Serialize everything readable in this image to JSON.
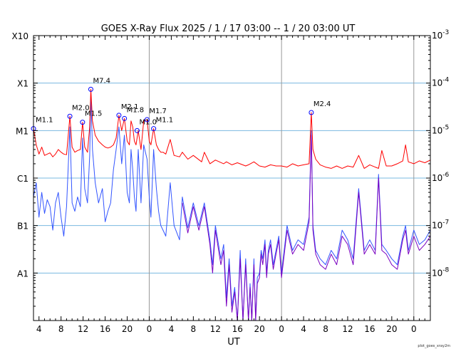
{
  "chart_data": {
    "type": "line",
    "title": "GOES X-Ray Flux   2025 /  1 / 17   03:00 --  1 / 20   03:00   UT",
    "xlabel": "UT",
    "credit": "plot_goes_xray2m",
    "x_start_hour": 3,
    "x_end_hour": 75,
    "yscale": "log",
    "ylim": [
      1e-09,
      0.001
    ],
    "left_ticks": [
      {
        "label": "X10",
        "value": 0.001
      },
      {
        "label": "X1",
        "value": 0.0001
      },
      {
        "label": "M1",
        "value": 1e-05
      },
      {
        "label": "C1",
        "value": 1e-06
      },
      {
        "label": "B1",
        "value": 1e-07
      },
      {
        "label": "A1",
        "value": 1e-08
      }
    ],
    "right_ticks": [
      {
        "mantissa": "10",
        "exp": "-3",
        "value": 0.001
      },
      {
        "mantissa": "10",
        "exp": "-4",
        "value": 0.0001
      },
      {
        "mantissa": "10",
        "exp": "-5",
        "value": 1e-05
      },
      {
        "mantissa": "10",
        "exp": "-6",
        "value": 1e-06
      },
      {
        "mantissa": "10",
        "exp": "-7",
        "value": 1e-07
      },
      {
        "mantissa": "10",
        "exp": "-8",
        "value": 1e-08
      }
    ],
    "x_ticks": [
      {
        "label": "4",
        "hour": 4
      },
      {
        "label": "8",
        "hour": 8
      },
      {
        "label": "12",
        "hour": 12
      },
      {
        "label": "16",
        "hour": 16
      },
      {
        "label": "20",
        "hour": 20
      },
      {
        "label": "0",
        "hour": 24
      },
      {
        "label": "4",
        "hour": 28
      },
      {
        "label": "8",
        "hour": 32
      },
      {
        "label": "12",
        "hour": 36
      },
      {
        "label": "16",
        "hour": 40
      },
      {
        "label": "20",
        "hour": 44
      },
      {
        "label": "0",
        "hour": 48
      },
      {
        "label": "4",
        "hour": 52
      },
      {
        "label": "8",
        "hour": 56
      },
      {
        "label": "12",
        "hour": 60
      },
      {
        "label": "16",
        "hour": 64
      },
      {
        "label": "20",
        "hour": 68
      },
      {
        "label": "0",
        "hour": 72
      }
    ],
    "day_boundaries_hours": [
      24,
      48,
      72
    ],
    "grid_levels": [
      0.0001,
      1e-05,
      1e-06,
      1e-07,
      1e-08
    ],
    "colors": {
      "long": "#ff0000",
      "short": "#3355ff",
      "short_alt": "#7a00c0",
      "grid": "#7ab8e0",
      "day_line": "#999999",
      "marker": "#0000ff"
    },
    "series": [
      {
        "key": "long",
        "x": [
          3.0,
          3.5,
          4.0,
          4.5,
          5.0,
          6.0,
          6.5,
          7.0,
          7.5,
          8.0,
          8.5,
          9.0,
          9.6,
          10.0,
          10.5,
          11.0,
          11.5,
          11.9,
          12.3,
          12.8,
          13.2,
          13.4,
          13.7,
          14.2,
          14.8,
          15.5,
          16.0,
          16.5,
          17.0,
          17.5,
          18.0,
          18.5,
          19.0,
          19.5,
          20.0,
          20.4,
          20.7,
          21.0,
          21.3,
          21.6,
          22.0,
          22.5,
          23.0,
          23.6,
          24.0,
          24.3,
          24.8,
          25.3,
          25.7,
          26.1,
          26.5,
          27.0,
          27.8,
          28.5,
          29.5,
          30.0,
          31.0,
          32.0,
          33.5,
          34.0,
          35.0,
          36.0,
          37.5,
          38.0,
          39.0,
          40.0,
          41.5,
          42.0,
          43.0,
          44.0,
          45.0,
          46.0,
          47.0,
          48.0,
          49.0,
          50.0,
          51.0,
          52.0,
          53.0,
          53.4,
          53.7,
          54.2,
          55.0,
          56.0,
          57.0,
          58.0,
          59.0,
          60.0,
          61.0,
          62.0,
          63.0,
          64.0,
          65.0,
          65.6,
          66.2,
          67.0,
          68.0,
          69.0,
          70.0,
          70.5,
          71.0,
          72.0,
          73.0,
          74.0,
          75.0
        ],
        "y": [
          1.1e-05,
          5e-06,
          3.2e-06,
          4.5e-06,
          3e-06,
          3.4e-06,
          2.8e-06,
          3.2e-06,
          4e-06,
          3.5e-06,
          3.2e-06,
          3.1e-06,
          2e-05,
          4.5e-06,
          3.5e-06,
          3.8e-06,
          4e-06,
          1.5e-05,
          4.5e-06,
          3.5e-06,
          1.2e-05,
          7.4e-05,
          1.6e-05,
          8e-06,
          6e-06,
          5e-06,
          4.5e-06,
          4.3e-06,
          4.5e-06,
          5e-06,
          7e-06,
          2.1e-05,
          1e-05,
          1.8e-05,
          6e-06,
          5e-06,
          1.6e-05,
          1.2e-05,
          6e-06,
          5e-06,
          1e-05,
          4e-06,
          1.6e-05,
          1.7e-05,
          6e-06,
          5e-06,
          1.1e-05,
          5e-06,
          4e-06,
          3.5e-06,
          3.5e-06,
          3.2e-06,
          6.5e-06,
          3e-06,
          2.8e-06,
          3.5e-06,
          2.5e-06,
          3e-06,
          2.2e-06,
          3.5e-06,
          2e-06,
          2.4e-06,
          2e-06,
          2.2e-06,
          1.9e-06,
          2.1e-06,
          1.8e-06,
          1.9e-06,
          2.2e-06,
          1.8e-06,
          1.7e-06,
          1.9e-06,
          1.8e-06,
          1.8e-06,
          1.7e-06,
          2e-06,
          1.8e-06,
          1.9e-06,
          2e-06,
          2.4e-05,
          4e-06,
          2.5e-06,
          1.9e-06,
          1.7e-06,
          1.6e-06,
          1.8e-06,
          1.6e-06,
          1.8e-06,
          1.7e-06,
          3e-06,
          1.6e-06,
          1.9e-06,
          1.7e-06,
          1.6e-06,
          3.8e-06,
          1.8e-06,
          1.8e-06,
          2e-06,
          2.3e-06,
          5e-06,
          2.2e-06,
          2e-06,
          2.3e-06,
          2.1e-06,
          2.4e-06
        ]
      },
      {
        "key": "short",
        "x": [
          3.0,
          3.5,
          4.0,
          4.5,
          5.0,
          5.5,
          6.0,
          6.5,
          7.0,
          7.5,
          8.0,
          8.5,
          9.0,
          9.6,
          10.0,
          10.5,
          11.0,
          11.5,
          11.9,
          12.3,
          12.8,
          13.2,
          13.4,
          13.7,
          14.2,
          14.8,
          15.5,
          16.0,
          16.5,
          17.0,
          17.5,
          18.0,
          18.5,
          19.0,
          19.5,
          20.0,
          20.4,
          20.7,
          21.0,
          21.3,
          21.6,
          22.0,
          22.5,
          23.0,
          23.6,
          24.0,
          24.3,
          24.8,
          25.3,
          25.7,
          26.1,
          26.5,
          27.0,
          27.8,
          28.5,
          29.5,
          30.0,
          31.0,
          32.0,
          33.0,
          34.0,
          35.0,
          35.5,
          36.0,
          37.0,
          37.5,
          38.0,
          38.5,
          39.0,
          39.5,
          40.0,
          40.5,
          41.0,
          41.5,
          42.0,
          42.3,
          42.6,
          43.0,
          43.3,
          43.6,
          44.0,
          44.3,
          44.6,
          45.0,
          45.3,
          45.6,
          46.0,
          46.5,
          47.0,
          47.5,
          48.0,
          49.0,
          50.0,
          51.0,
          52.0,
          53.0,
          53.4,
          53.7,
          54.2,
          55.0,
          56.0,
          57.0,
          58.0,
          59.0,
          60.0,
          61.0,
          62.0,
          63.0,
          64.0,
          65.0,
          65.6,
          66.2,
          67.0,
          68.0,
          69.0,
          70.0,
          70.5,
          71.0,
          72.0,
          73.0,
          74.0,
          75.0
        ],
        "y": [
          4e-07,
          8e-07,
          1.5e-07,
          5e-07,
          1.8e-07,
          3.5e-07,
          2.5e-07,
          8e-08,
          3e-07,
          5e-07,
          1.5e-07,
          6e-08,
          2.5e-07,
          1.2e-05,
          3e-07,
          2e-07,
          4e-07,
          2.5e-07,
          7e-06,
          6e-07,
          3e-07,
          3e-06,
          6e-05,
          4e-06,
          8e-07,
          3e-07,
          6e-07,
          1.2e-07,
          2e-07,
          3e-07,
          1.5e-06,
          4e-06,
          1.2e-05,
          2e-06,
          8e-06,
          5e-07,
          3e-07,
          4e-06,
          1.5e-06,
          4e-07,
          2e-07,
          4e-06,
          3e-07,
          5e-06,
          2.5e-06,
          4e-07,
          1.5e-07,
          4e-06,
          6e-07,
          2e-07,
          1e-07,
          8e-08,
          6e-08,
          8e-07,
          1e-07,
          5e-08,
          4e-07,
          9e-08,
          3e-07,
          1e-07,
          3e-07,
          5e-08,
          1.5e-08,
          1e-07,
          2e-08,
          4e-08,
          3e-09,
          2e-08,
          2e-09,
          5e-09,
          1e-09,
          3e-08,
          1e-09,
          2e-08,
          1e-09,
          6e-09,
          1e-09,
          2e-08,
          1e-09,
          8e-09,
          1e-08,
          3e-08,
          2e-08,
          5e-08,
          1e-08,
          3e-08,
          5e-08,
          1.5e-08,
          3e-08,
          6e-08,
          1e-08,
          1e-07,
          3e-08,
          5e-08,
          4e-08,
          1.5e-07,
          1e-05,
          1e-07,
          3e-08,
          2e-08,
          1.5e-08,
          3e-08,
          2e-08,
          8e-08,
          5e-08,
          2e-08,
          6e-07,
          3e-08,
          5e-08,
          3e-08,
          1.2e-06,
          4e-08,
          3e-08,
          2e-08,
          1.5e-08,
          6e-08,
          1e-07,
          3e-08,
          8e-08,
          4e-08,
          5e-08,
          8e-08
        ]
      },
      {
        "key": "short_alt",
        "x": [
          30.0,
          31.0,
          32.0,
          33.0,
          34.0,
          35.0,
          35.5,
          36.0,
          37.0,
          37.5,
          38.0,
          38.5,
          39.0,
          39.5,
          40.0,
          40.5,
          41.0,
          41.5,
          42.0,
          42.3,
          42.6,
          43.0,
          43.3,
          43.6,
          44.0,
          44.3,
          44.6,
          45.0,
          45.3,
          45.6,
          46.0,
          46.5,
          47.0,
          47.5,
          48.0,
          49.0,
          50.0,
          51.0,
          52.0,
          53.0,
          53.4,
          53.7,
          54.2,
          55.0,
          56.0,
          57.0,
          58.0,
          59.0,
          60.0,
          61.0,
          62.0,
          63.0,
          64.0,
          65.0,
          65.6,
          66.2,
          67.0,
          68.0,
          69.0,
          70.0,
          70.5,
          71.0,
          72.0,
          73.0,
          74.0,
          75.0
        ],
        "y": [
          3e-07,
          7e-08,
          2.5e-07,
          8e-08,
          2.5e-07,
          4e-08,
          1e-08,
          8e-08,
          1.5e-08,
          3e-08,
          2e-09,
          1.5e-08,
          1.5e-09,
          4e-09,
          1e-09,
          2e-08,
          1e-09,
          1.5e-08,
          1e-09,
          5e-09,
          1e-09,
          1.5e-08,
          1e-09,
          6e-09,
          8e-09,
          2.5e-08,
          1.5e-08,
          4e-08,
          8e-09,
          2.5e-08,
          4e-08,
          1.2e-08,
          2.5e-08,
          5e-08,
          8e-09,
          8e-08,
          2.5e-08,
          4e-08,
          3e-08,
          1.2e-07,
          8e-06,
          8e-08,
          2.5e-08,
          1.5e-08,
          1.2e-08,
          2.5e-08,
          1.5e-08,
          6e-08,
          4e-08,
          1.5e-08,
          5e-07,
          2.5e-08,
          4e-08,
          2.5e-08,
          1e-06,
          3e-08,
          2.5e-08,
          1.5e-08,
          1.2e-08,
          5e-08,
          8e-08,
          2.5e-08,
          6e-08,
          3e-08,
          4e-08,
          6e-08
        ]
      }
    ],
    "flares": [
      {
        "label": "M1.1",
        "hour": 3.0,
        "value": 1.1e-05
      },
      {
        "label": "M2.0",
        "hour": 9.6,
        "value": 2e-05
      },
      {
        "label": "M1.5",
        "hour": 11.9,
        "value": 1.5e-05
      },
      {
        "label": "M7.4",
        "hour": 13.4,
        "value": 7.4e-05
      },
      {
        "label": "M2.1",
        "hour": 18.5,
        "value": 2.1e-05
      },
      {
        "label": "M1.8",
        "hour": 19.5,
        "value": 1.8e-05
      },
      {
        "label": "M1.0",
        "hour": 21.8,
        "value": 1e-05
      },
      {
        "label": "M1.7",
        "hour": 23.6,
        "value": 1.7e-05
      },
      {
        "label": "M1.1",
        "hour": 24.8,
        "value": 1.1e-05
      },
      {
        "label": "M2.4",
        "hour": 53.4,
        "value": 2.4e-05
      }
    ]
  }
}
